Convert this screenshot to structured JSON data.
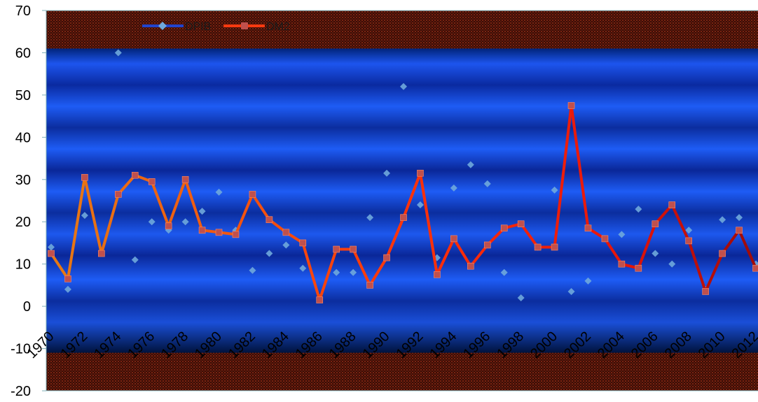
{
  "chart_data": {
    "type": "line",
    "title": "",
    "xlabel": "",
    "ylabel": "",
    "ylim": [
      -20,
      70
    ],
    "yticks": [
      -20,
      -10,
      0,
      10,
      20,
      30,
      40,
      50,
      60,
      70
    ],
    "x": [
      1970,
      1971,
      1972,
      1973,
      1974,
      1975,
      1976,
      1977,
      1978,
      1979,
      1980,
      1981,
      1982,
      1983,
      1984,
      1985,
      1986,
      1987,
      1988,
      1989,
      1990,
      1991,
      1992,
      1993,
      1994,
      1995,
      1996,
      1997,
      1998,
      1999,
      2000,
      2001,
      2002,
      2003,
      2004,
      2005,
      2006,
      2007,
      2008,
      2009,
      2010,
      2011,
      2012
    ],
    "xtick_labels": [
      "1970",
      "1972",
      "1974",
      "1976",
      "1978",
      "1980",
      "1982",
      "1984",
      "1986",
      "1988",
      "1990",
      "1992",
      "1994",
      "1996",
      "1998",
      "2000",
      "2002",
      "2004",
      "2006",
      "2008",
      "2010",
      "2012"
    ],
    "legend_position": "top-left",
    "series": [
      {
        "name": "DPIB",
        "style": "markers",
        "color": "#6fa8dc",
        "values": [
          14,
          4,
          21.5,
          13,
          60,
          11,
          20,
          18,
          20,
          22.5,
          27,
          18,
          8.5,
          12.5,
          14.5,
          9,
          2,
          8,
          8,
          21,
          31.5,
          52,
          24,
          11.5,
          28,
          33.5,
          29,
          8,
          2,
          14,
          27.5,
          3.5,
          6,
          16,
          17,
          23,
          12.5,
          10,
          18,
          4,
          20.5,
          21,
          10
        ]
      },
      {
        "name": "DM2",
        "style": "line",
        "color": "#ff5a1f",
        "marker_color": "#c0504d",
        "values": [
          12.5,
          6.5,
          30.5,
          12.5,
          26.5,
          31,
          29.5,
          19,
          30,
          18,
          17.5,
          17,
          26.5,
          20.5,
          17.5,
          15,
          1.5,
          13.5,
          13.5,
          5,
          11.5,
          21,
          31.5,
          7.5,
          16,
          9.5,
          14.5,
          18.5,
          19.5,
          14,
          14,
          47.5,
          18.5,
          16,
          10,
          9,
          19.5,
          24,
          15.5,
          3.5,
          12.5,
          18,
          9
        ]
      }
    ],
    "background": {
      "outer_band": "dark red checker",
      "inner_band": "blue gradient"
    }
  }
}
